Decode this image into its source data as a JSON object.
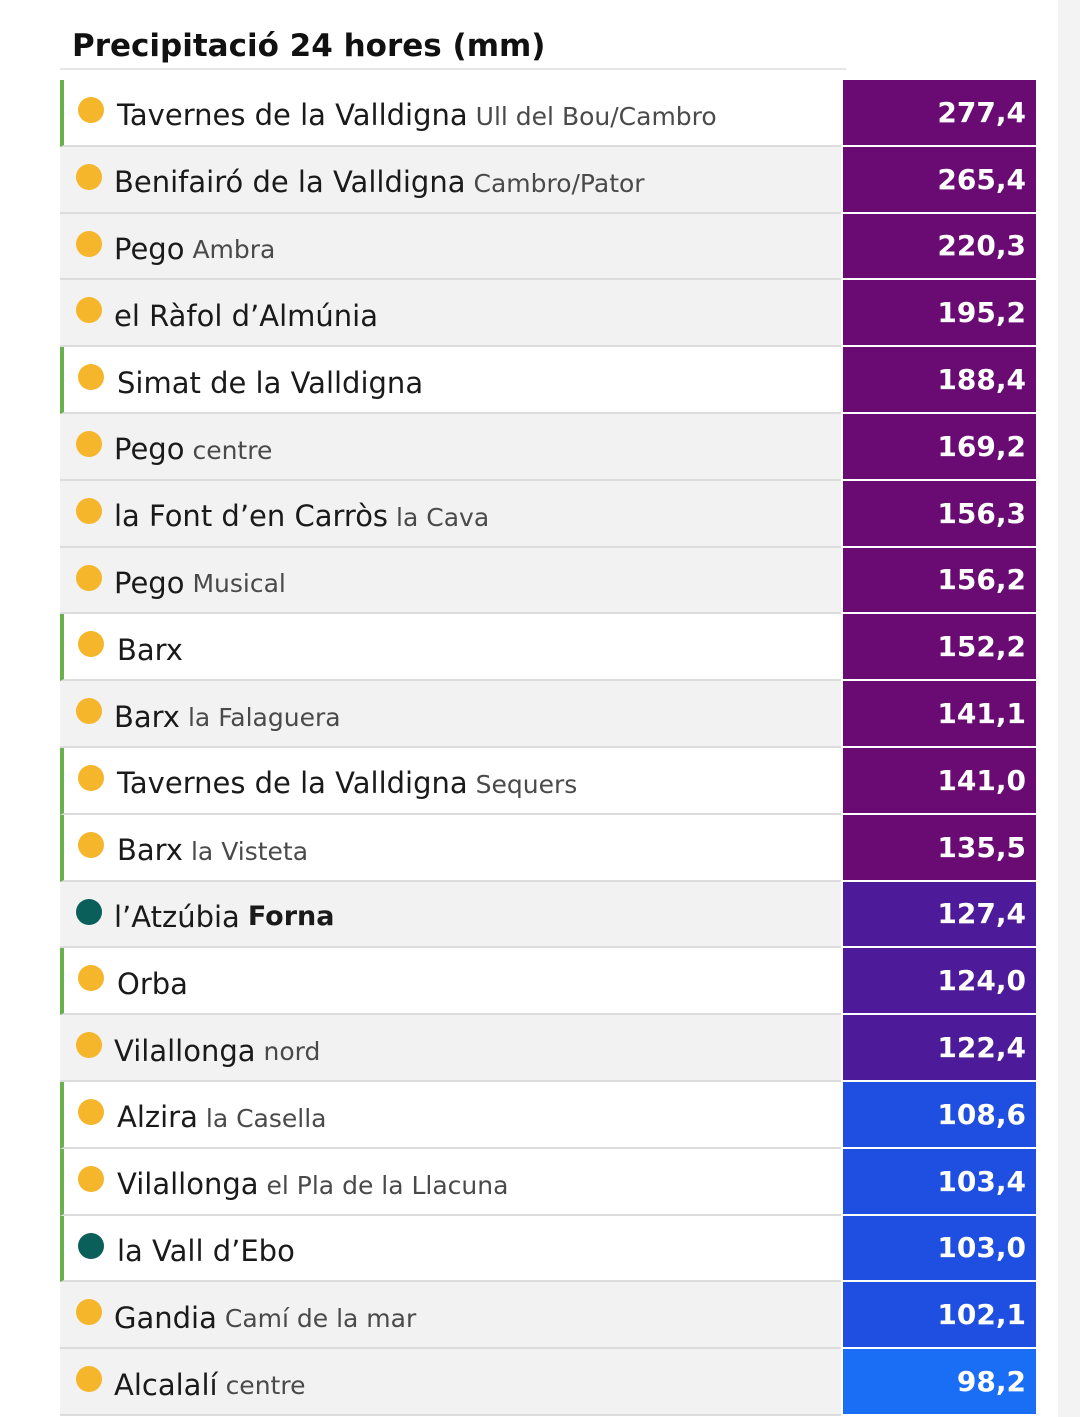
{
  "title": "Precipitació 24 hores (mm)",
  "colors": {
    "dot_yellow": "#f5b62c",
    "dot_teal": "#0b5f5a",
    "flag_green": "#6ab04c",
    "purple_dark": "#6a0a73",
    "purple_mid": "#4d1a99",
    "blue": "#1f4fe0",
    "blue_light": "#1a6ef5"
  },
  "rows": [
    {
      "name": "Tavernes de la Valldigna",
      "sub": "Ull del Bou/Cambro",
      "value": "277,4",
      "dot": "yellow",
      "flag": true,
      "band": "purple_dark"
    },
    {
      "name": "Benifairó de la Valldigna",
      "sub": "Cambro/Pator",
      "value": "265,4",
      "dot": "yellow",
      "flag": false,
      "band": "purple_dark"
    },
    {
      "name": "Pego",
      "sub": "Ambra",
      "value": "220,3",
      "dot": "yellow",
      "flag": false,
      "band": "purple_dark"
    },
    {
      "name": "el Ràfol d’Almúnia",
      "sub": "",
      "value": "195,2",
      "dot": "yellow",
      "flag": false,
      "band": "purple_dark"
    },
    {
      "name": "Simat de la Valldigna",
      "sub": "",
      "value": "188,4",
      "dot": "yellow",
      "flag": true,
      "band": "purple_dark"
    },
    {
      "name": "Pego",
      "sub": "centre",
      "value": "169,2",
      "dot": "yellow",
      "flag": false,
      "band": "purple_dark"
    },
    {
      "name": "la Font d’en Carròs",
      "sub": "la Cava",
      "value": "156,3",
      "dot": "yellow",
      "flag": false,
      "band": "purple_dark"
    },
    {
      "name": "Pego",
      "sub": "Musical",
      "value": "156,2",
      "dot": "yellow",
      "flag": false,
      "band": "purple_dark"
    },
    {
      "name": "Barx",
      "sub": "",
      "value": "152,2",
      "dot": "yellow",
      "flag": true,
      "band": "purple_dark"
    },
    {
      "name": "Barx",
      "sub": "la Falaguera",
      "value": "141,1",
      "dot": "yellow",
      "flag": false,
      "band": "purple_dark"
    },
    {
      "name": "Tavernes de la Valldigna",
      "sub": "Sequers",
      "value": "141,0",
      "dot": "yellow",
      "flag": true,
      "band": "purple_dark"
    },
    {
      "name": "Barx",
      "sub": "la Visteta",
      "value": "135,5",
      "dot": "yellow",
      "flag": true,
      "band": "purple_dark"
    },
    {
      "name": "l’Atzúbia",
      "sub": "Forna",
      "sub_bold": true,
      "value": "127,4",
      "dot": "teal",
      "flag": false,
      "band": "purple_mid"
    },
    {
      "name": "Orba",
      "sub": "",
      "value": "124,0",
      "dot": "yellow",
      "flag": true,
      "band": "purple_mid"
    },
    {
      "name": "Vilallonga",
      "sub": "nord",
      "value": "122,4",
      "dot": "yellow",
      "flag": false,
      "band": "purple_mid"
    },
    {
      "name": "Alzira",
      "sub": "la Casella",
      "value": "108,6",
      "dot": "yellow",
      "flag": true,
      "band": "blue"
    },
    {
      "name": "Vilallonga",
      "sub": "el Pla de la Llacuna",
      "value": "103,4",
      "dot": "yellow",
      "flag": true,
      "band": "blue"
    },
    {
      "name": "la Vall d’Ebo",
      "sub": "",
      "value": "103,0",
      "dot": "teal",
      "flag": true,
      "band": "blue"
    },
    {
      "name": "Gandia",
      "sub": "Camí de la mar",
      "value": "102,1",
      "dot": "yellow",
      "flag": false,
      "band": "blue"
    },
    {
      "name": "Alcalalí",
      "sub": "centre",
      "value": "98,2",
      "dot": "yellow",
      "flag": false,
      "band": "blue_light"
    }
  ]
}
